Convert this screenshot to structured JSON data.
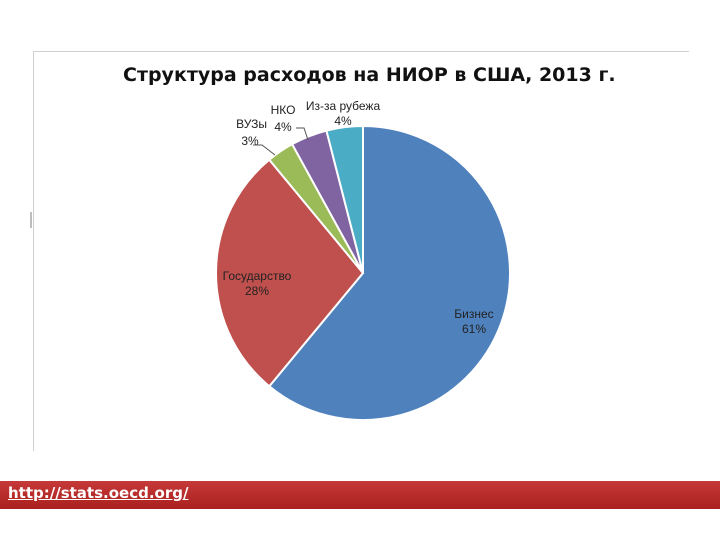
{
  "chart_data": {
    "type": "pie",
    "title": "Структура расходов на НИОР в США, 2013 г.",
    "categories": [
      "Бизнес",
      "Государство",
      "ВУЗы",
      "НКО",
      "Из-за рубежа"
    ],
    "values": [
      61,
      28,
      3,
      4,
      4
    ],
    "value_labels": [
      "61%",
      "28%",
      "3%",
      "4%",
      "4%"
    ],
    "colors": [
      "#4f81bd",
      "#c0504d",
      "#9bbb59",
      "#8064a2",
      "#4bacc6"
    ],
    "start_angle": "12 o'clock",
    "direction": "clockwise",
    "legend": "none"
  },
  "footer": {
    "source_link": "http://stats.oecd.org/",
    "accent_color": "#b3292a"
  }
}
